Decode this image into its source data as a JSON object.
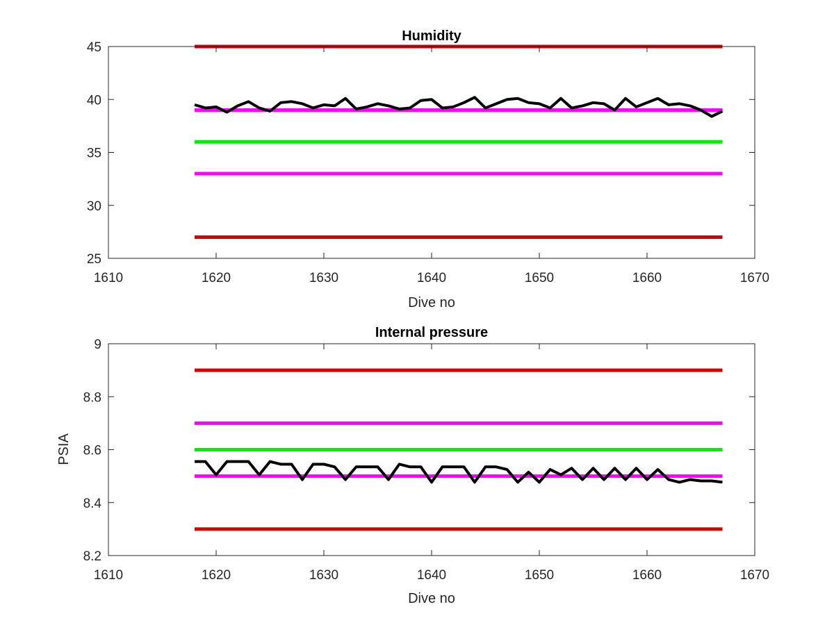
{
  "chart_data": [
    {
      "type": "line",
      "title": "Humidity",
      "xlabel": "Dive no",
      "ylabel": "",
      "xlim": [
        1610,
        1670
      ],
      "ylim": [
        25,
        45
      ],
      "x_ticks": [
        1610,
        1620,
        1630,
        1640,
        1650,
        1660,
        1670
      ],
      "y_ticks": [
        25,
        30,
        35,
        40,
        45
      ],
      "grid": false,
      "series": [
        {
          "color": "#000000",
          "x": [
            1618,
            1619,
            1620,
            1621,
            1622,
            1623,
            1624,
            1625,
            1626,
            1627,
            1628,
            1629,
            1630,
            1631,
            1632,
            1633,
            1634,
            1635,
            1636,
            1637,
            1638,
            1639,
            1640,
            1641,
            1642,
            1643,
            1644,
            1645,
            1646,
            1647,
            1648,
            1649,
            1650,
            1651,
            1652,
            1653,
            1654,
            1655,
            1656,
            1657,
            1658,
            1659,
            1660,
            1661,
            1662,
            1663,
            1664,
            1665,
            1666,
            1667
          ],
          "values": [
            39.5,
            39.2,
            39.3,
            38.8,
            39.4,
            39.8,
            39.2,
            38.9,
            39.7,
            39.8,
            39.6,
            39.2,
            39.5,
            39.4,
            40.1,
            39.1,
            39.3,
            39.6,
            39.4,
            39.1,
            39.2,
            39.9,
            40.0,
            39.2,
            39.3,
            39.7,
            40.2,
            39.2,
            39.6,
            40.0,
            40.1,
            39.7,
            39.6,
            39.2,
            40.1,
            39.2,
            39.4,
            39.7,
            39.6,
            39.0,
            40.1,
            39.3,
            39.7,
            40.1,
            39.5,
            39.6,
            39.4,
            39.0,
            38.4,
            38.9
          ]
        },
        {
          "color": "#d40000",
          "x": [
            1618,
            1667
          ],
          "values": [
            45,
            45
          ]
        },
        {
          "color": "#ff00ff",
          "x": [
            1618,
            1667
          ],
          "values": [
            39,
            39
          ]
        },
        {
          "color": "#00ee00",
          "x": [
            1618,
            1667
          ],
          "values": [
            36,
            36
          ]
        },
        {
          "color": "#ff00ff",
          "x": [
            1618,
            1667
          ],
          "values": [
            33,
            33
          ]
        },
        {
          "color": "#d40000",
          "x": [
            1618,
            1667
          ],
          "values": [
            27,
            27
          ]
        }
      ]
    },
    {
      "type": "line",
      "title": "Internal pressure",
      "xlabel": "Dive no",
      "ylabel": "PSIA",
      "xlim": [
        1610,
        1670
      ],
      "ylim": [
        8.2,
        9.0
      ],
      "x_ticks": [
        1610,
        1620,
        1630,
        1640,
        1650,
        1660,
        1670
      ],
      "y_ticks": [
        "8.2",
        "8.4",
        "8.6",
        "8.8",
        "9"
      ],
      "grid": false,
      "series": [
        {
          "color": "#000000",
          "x": [
            1618,
            1619,
            1620,
            1621,
            1622,
            1623,
            1624,
            1625,
            1626,
            1627,
            1628,
            1629,
            1630,
            1631,
            1632,
            1633,
            1634,
            1635,
            1636,
            1637,
            1638,
            1639,
            1640,
            1641,
            1642,
            1643,
            1644,
            1645,
            1646,
            1647,
            1648,
            1649,
            1650,
            1651,
            1652,
            1653,
            1654,
            1655,
            1656,
            1657,
            1658,
            1659,
            1660,
            1661,
            1662,
            1663,
            1664,
            1665,
            1666,
            1667
          ],
          "values": [
            8.555,
            8.555,
            8.505,
            8.555,
            8.555,
            8.555,
            8.505,
            8.555,
            8.545,
            8.545,
            8.487,
            8.545,
            8.545,
            8.535,
            8.487,
            8.535,
            8.535,
            8.535,
            8.487,
            8.545,
            8.535,
            8.535,
            8.477,
            8.535,
            8.535,
            8.535,
            8.477,
            8.535,
            8.535,
            8.525,
            8.477,
            8.515,
            8.477,
            8.525,
            8.505,
            8.53,
            8.487,
            8.53,
            8.487,
            8.53,
            8.487,
            8.53,
            8.487,
            8.525,
            8.487,
            8.477,
            8.487,
            8.482,
            8.482,
            8.477
          ]
        },
        {
          "color": "#d40000",
          "x": [
            1618,
            1667
          ],
          "values": [
            8.9,
            8.9
          ]
        },
        {
          "color": "#ff00ff",
          "x": [
            1618,
            1667
          ],
          "values": [
            8.7,
            8.7
          ]
        },
        {
          "color": "#00ee00",
          "x": [
            1618,
            1667
          ],
          "values": [
            8.6,
            8.6
          ]
        },
        {
          "color": "#ff00ff",
          "x": [
            1618,
            1667
          ],
          "values": [
            8.5,
            8.5
          ]
        },
        {
          "color": "#d40000",
          "x": [
            1618,
            1667
          ],
          "values": [
            8.3,
            8.3
          ]
        }
      ]
    }
  ]
}
